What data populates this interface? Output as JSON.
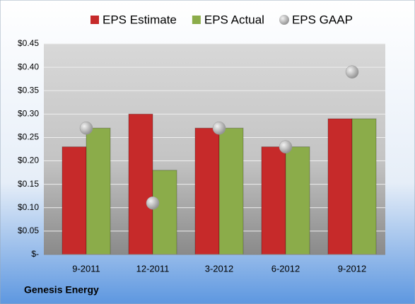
{
  "chart_data": {
    "type": "bar",
    "categories": [
      "9-2011",
      "12-2011",
      "3-2012",
      "6-2012",
      "9-2012"
    ],
    "series": [
      {
        "name": "EPS Estimate",
        "type": "bar",
        "color": "#c62a2a",
        "values": [
          0.23,
          0.3,
          0.27,
          0.23,
          0.29
        ]
      },
      {
        "name": "EPS Actual",
        "type": "bar",
        "color": "#8bac4a",
        "values": [
          0.27,
          0.18,
          0.27,
          0.23,
          0.29
        ]
      },
      {
        "name": "EPS GAAP",
        "type": "scatter",
        "color": "#a9a9a9",
        "values": [
          0.27,
          0.11,
          0.27,
          0.23,
          0.39
        ]
      }
    ],
    "ylim": [
      0,
      0.45
    ],
    "yticks": [
      {
        "value": 0,
        "label": "$-"
      },
      {
        "value": 0.05,
        "label": "$0.05"
      },
      {
        "value": 0.1,
        "label": "$0.10"
      },
      {
        "value": 0.15,
        "label": "$0.15"
      },
      {
        "value": 0.2,
        "label": "$0.20"
      },
      {
        "value": 0.25,
        "label": "$0.25"
      },
      {
        "value": 0.3,
        "label": "$0.30"
      },
      {
        "value": 0.35,
        "label": "$0.35"
      },
      {
        "value": 0.4,
        "label": "$0.40"
      },
      {
        "value": 0.45,
        "label": "$0.45"
      }
    ],
    "grid": true,
    "legend": "top",
    "footer": "Genesis Energy"
  }
}
